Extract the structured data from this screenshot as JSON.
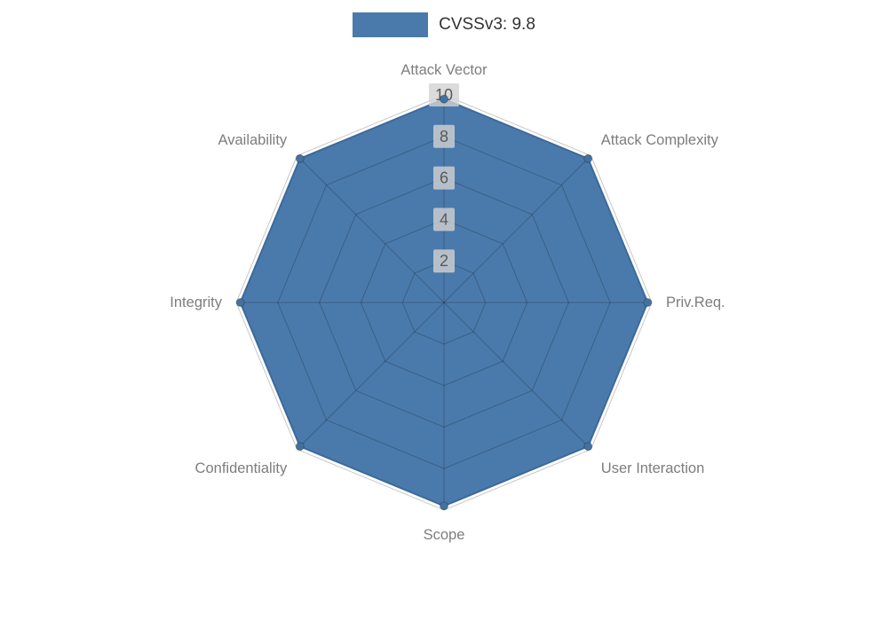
{
  "legend": {
    "label": "CVSSv3: 9.8",
    "swatch_color": "#4a7aab"
  },
  "colors": {
    "fill": "#4a7aab",
    "fill_stroke": "#3c699a",
    "grid": "rgba(0,0,0,0.22)",
    "axis_label": "#7d7d7d",
    "tick_text": "#5a5a5a",
    "tick_chip": "rgba(210,210,210,0.8)",
    "marker": "#44719f"
  },
  "chart_data": {
    "type": "radar",
    "title": "CVSSv3: 9.8",
    "categories": [
      "Attack Vector",
      "Attack Complexity",
      "Priv.Req.",
      "User Interaction",
      "Scope",
      "Confidentiality",
      "Integrity",
      "Availability"
    ],
    "series": [
      {
        "name": "CVSSv3: 9.8",
        "values": [
          9.8,
          9.8,
          9.8,
          9.8,
          9.8,
          9.8,
          9.8,
          9.8
        ]
      }
    ],
    "ticks": [
      2,
      4,
      6,
      8,
      10
    ],
    "rmax": 10,
    "grid": true,
    "legend_position": "top"
  }
}
